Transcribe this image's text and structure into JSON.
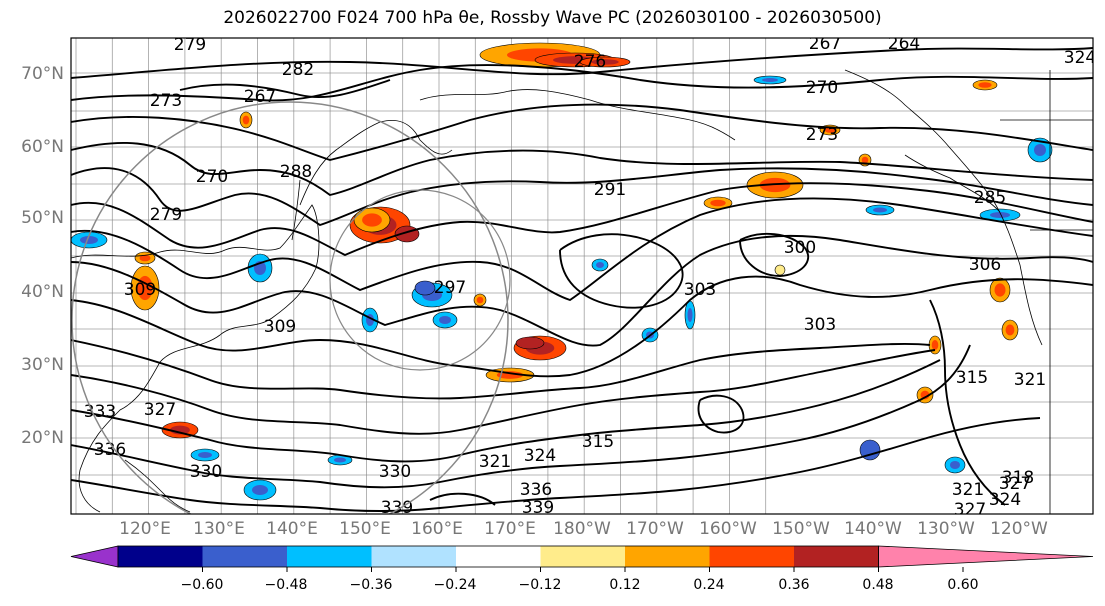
{
  "title": "2026022700 F024 700 hPa θe, Rossby Wave PC (2026030100 - 2026030500)",
  "lat_labels": [
    "70°N",
    "60°N",
    "50°N",
    "40°N",
    "30°N",
    "20°N"
  ],
  "lon_labels": [
    "120°E",
    "130°E",
    "140°E",
    "150°E",
    "160°E",
    "170°E",
    "180°W",
    "170°W",
    "160°W",
    "150°W",
    "140°W",
    "130°W",
    "120°W"
  ],
  "contour_labels": [
    "279",
    "282",
    "276",
    "273",
    "267",
    "270",
    "279",
    "288",
    "291",
    "285",
    "264",
    "267",
    "270",
    "273",
    "300",
    "306",
    "303",
    "303",
    "297",
    "309",
    "309",
    "315",
    "321",
    "327",
    "333",
    "330",
    "336",
    "339",
    "336",
    "330",
    "339",
    "327",
    "324",
    "321",
    "324",
    "318",
    "315",
    "321",
    "327",
    "324"
  ],
  "colorbar": {
    "ticks": [
      "−0.60",
      "−0.48",
      "−0.36",
      "−0.24",
      "−0.12",
      "0.12",
      "0.24",
      "0.36",
      "0.48",
      "0.60"
    ],
    "colors": [
      "#9932cc",
      "#00008b",
      "#3a5fcd",
      "#00bfff",
      "#b0e2ff",
      "#ffffff",
      "#ffec8b",
      "#ffa500",
      "#ff4500",
      "#b22222",
      "#ff82ab"
    ]
  },
  "colors": {
    "gridlines": "#888888",
    "contours": "#000000",
    "coastlines": "#000000",
    "tick_labels": "#777777"
  }
}
